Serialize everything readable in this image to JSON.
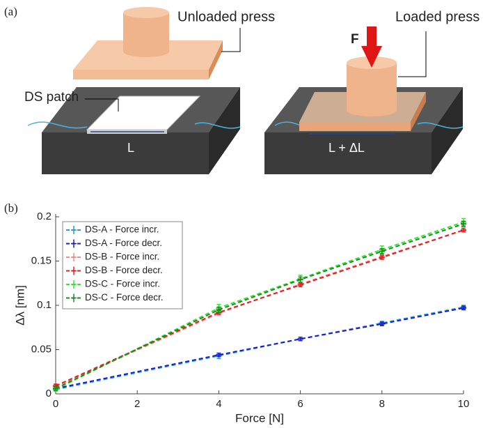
{
  "figure": {
    "panel_a": "(a)",
    "panel_b": "(b)",
    "unloaded_press": "Unloaded press",
    "loaded_press": "Loaded press",
    "force": "F",
    "ds_patch": "DS patch",
    "length": "L",
    "length_loaded": "L + ΔL"
  },
  "chart_data": {
    "type": "line",
    "xlabel": "Force [N]",
    "ylabel": "Δλ [nm]",
    "x": [
      0,
      4,
      6,
      8,
      10
    ],
    "xlim": [
      0,
      10
    ],
    "xticks": [
      0,
      2,
      4,
      6,
      8,
      10
    ],
    "ylim": [
      0,
      0.2
    ],
    "yticks": [
      0,
      0.05,
      0.1,
      0.15,
      0.2
    ],
    "grid": false,
    "legend": "upper-left",
    "series": [
      {
        "name": "DS-A - Force incr.",
        "color": "#2a9bd8",
        "values": [
          0.005,
          0.043,
          0.062,
          0.08,
          0.098
        ],
        "errors": [
          0.002,
          0.003,
          0.002,
          0.002,
          0.002
        ]
      },
      {
        "name": "DS-A - Force decr.",
        "color": "#1c1ccc",
        "values": [
          0.006,
          0.044,
          0.062,
          0.079,
          0.097
        ],
        "errors": [
          0.002,
          0.002,
          0.002,
          0.002,
          0.002
        ]
      },
      {
        "name": "DS-B - Force incr.",
        "color": "#f08a8a",
        "values": [
          0.008,
          0.091,
          0.124,
          0.155,
          0.185
        ],
        "errors": [
          0.002,
          0.002,
          0.002,
          0.002,
          0.002
        ]
      },
      {
        "name": "DS-B - Force decr.",
        "color": "#e02020",
        "values": [
          0.009,
          0.092,
          0.123,
          0.154,
          0.185
        ],
        "errors": [
          0.002,
          0.002,
          0.002,
          0.002,
          0.002
        ]
      },
      {
        "name": "DS-C - Force incr.",
        "color": "#33e633",
        "values": [
          0.005,
          0.097,
          0.13,
          0.163,
          0.194
        ],
        "errors": [
          0.002,
          0.004,
          0.004,
          0.004,
          0.004
        ]
      },
      {
        "name": "DS-C - Force decr.",
        "color": "#1a8c1a",
        "values": [
          0.006,
          0.095,
          0.129,
          0.161,
          0.192
        ],
        "errors": [
          0.002,
          0.003,
          0.003,
          0.003,
          0.003
        ]
      }
    ]
  }
}
